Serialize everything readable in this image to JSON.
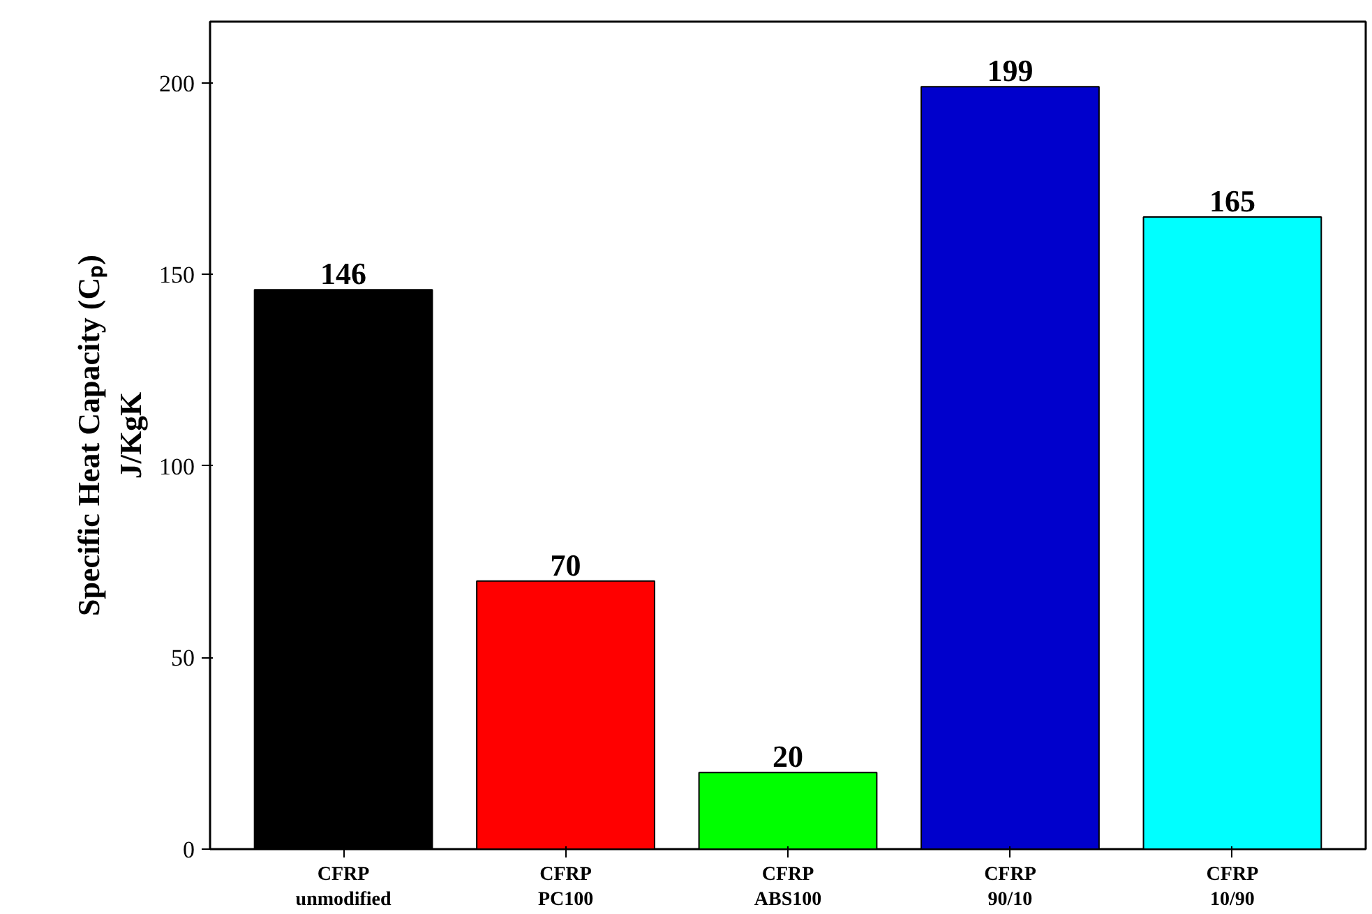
{
  "chart_data": {
    "type": "bar",
    "categories": [
      "CFRP\nunmodified",
      "CFRP\nPC100",
      "CFRP\nABS100",
      "CFRP\n90/10",
      "CFRP\n10/90"
    ],
    "values": [
      146,
      70,
      20,
      199,
      165
    ],
    "colors": [
      "#000000",
      "#ff0000",
      "#00ff00",
      "#0000cc",
      "#00ffff"
    ],
    "ylabel": "Specific Heat Capacity (Cₚ)\nJ/KgK",
    "ylim": [
      0,
      216
    ],
    "yticks": [
      0,
      50,
      100,
      150,
      200
    ],
    "data_labels": true,
    "grid": false
  }
}
